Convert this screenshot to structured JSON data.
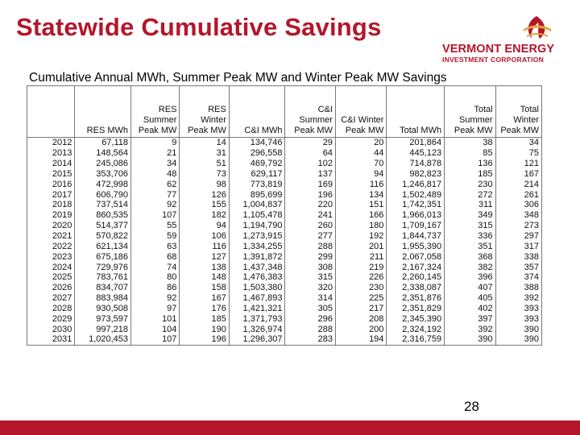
{
  "slide": {
    "title": "Statewide Cumulative Savings",
    "page_number": "28"
  },
  "logo": {
    "line1": "VERMONT ENERGY",
    "line2": "INVESTMENT CORPORATION",
    "icon": "flame-sunrise-icon"
  },
  "colors": {
    "brand": "#b5152b",
    "logo_accent": "#e8a33a"
  },
  "table": {
    "title": "Cumulative Annual MWh, Summer Peak MW and Winter Peak MW Savings",
    "headers": [
      "",
      "RES MWh",
      "RES\nSummer\nPeak MW",
      "RES\nWinter\nPeak MW",
      "C&I MWh",
      "C&I\nSummer\nPeak MW",
      "C&I Winter\nPeak MW",
      "Total MWh",
      "Total\nSummer\nPeak MW",
      "Total\nWinter\nPeak MW"
    ],
    "rows": [
      [
        "2012",
        "67,118",
        "9",
        "14",
        "134,746",
        "29",
        "20",
        "201,864",
        "38",
        "34"
      ],
      [
        "2013",
        "148,564",
        "21",
        "31",
        "296,558",
        "64",
        "44",
        "445,123",
        "85",
        "75"
      ],
      [
        "2014",
        "245,086",
        "34",
        "51",
        "469,792",
        "102",
        "70",
        "714,878",
        "136",
        "121"
      ],
      [
        "2015",
        "353,706",
        "48",
        "73",
        "629,117",
        "137",
        "94",
        "982,823",
        "185",
        "167"
      ],
      [
        "2016",
        "472,998",
        "62",
        "98",
        "773,819",
        "169",
        "116",
        "1,246,817",
        "230",
        "214"
      ],
      [
        "2017",
        "606,790",
        "77",
        "126",
        "895,699",
        "196",
        "134",
        "1,502,489",
        "272",
        "261"
      ],
      [
        "2018",
        "737,514",
        "92",
        "155",
        "1,004,837",
        "220",
        "151",
        "1,742,351",
        "311",
        "306"
      ],
      [
        "2019",
        "860,535",
        "107",
        "182",
        "1,105,478",
        "241",
        "166",
        "1,966,013",
        "349",
        "348"
      ],
      [
        "2020",
        "514,377",
        "55",
        "94",
        "1,194,790",
        "260",
        "180",
        "1,709,167",
        "315",
        "273"
      ],
      [
        "2021",
        "570,822",
        "59",
        "106",
        "1,273,915",
        "277",
        "192",
        "1,844,737",
        "336",
        "297"
      ],
      [
        "2022",
        "621,134",
        "63",
        "116",
        "1,334,255",
        "288",
        "201",
        "1,955,390",
        "351",
        "317"
      ],
      [
        "2023",
        "675,186",
        "68",
        "127",
        "1,391,872",
        "299",
        "211",
        "2,067,058",
        "368",
        "338"
      ],
      [
        "2024",
        "729,976",
        "74",
        "138",
        "1,437,348",
        "308",
        "219",
        "2,167,324",
        "382",
        "357"
      ],
      [
        "2025",
        "783,761",
        "80",
        "148",
        "1,476,383",
        "315",
        "226",
        "2,260,145",
        "396",
        "374"
      ],
      [
        "2026",
        "834,707",
        "86",
        "158",
        "1,503,380",
        "320",
        "230",
        "2,338,087",
        "407",
        "388"
      ],
      [
        "2027",
        "883,984",
        "92",
        "167",
        "1,467,893",
        "314",
        "225",
        "2,351,876",
        "405",
        "392"
      ],
      [
        "2028",
        "930,508",
        "97",
        "176",
        "1,421,321",
        "305",
        "217",
        "2,351,829",
        "402",
        "393"
      ],
      [
        "2029",
        "973,597",
        "101",
        "185",
        "1,371,793",
        "296",
        "208",
        "2,345,390",
        "397",
        "393"
      ],
      [
        "2030",
        "997,218",
        "104",
        "190",
        "1,326,974",
        "288",
        "200",
        "2,324,192",
        "392",
        "390"
      ],
      [
        "2031",
        "1,020,453",
        "107",
        "196",
        "1,296,307",
        "283",
        "194",
        "2,316,759",
        "390",
        "390"
      ]
    ]
  }
}
